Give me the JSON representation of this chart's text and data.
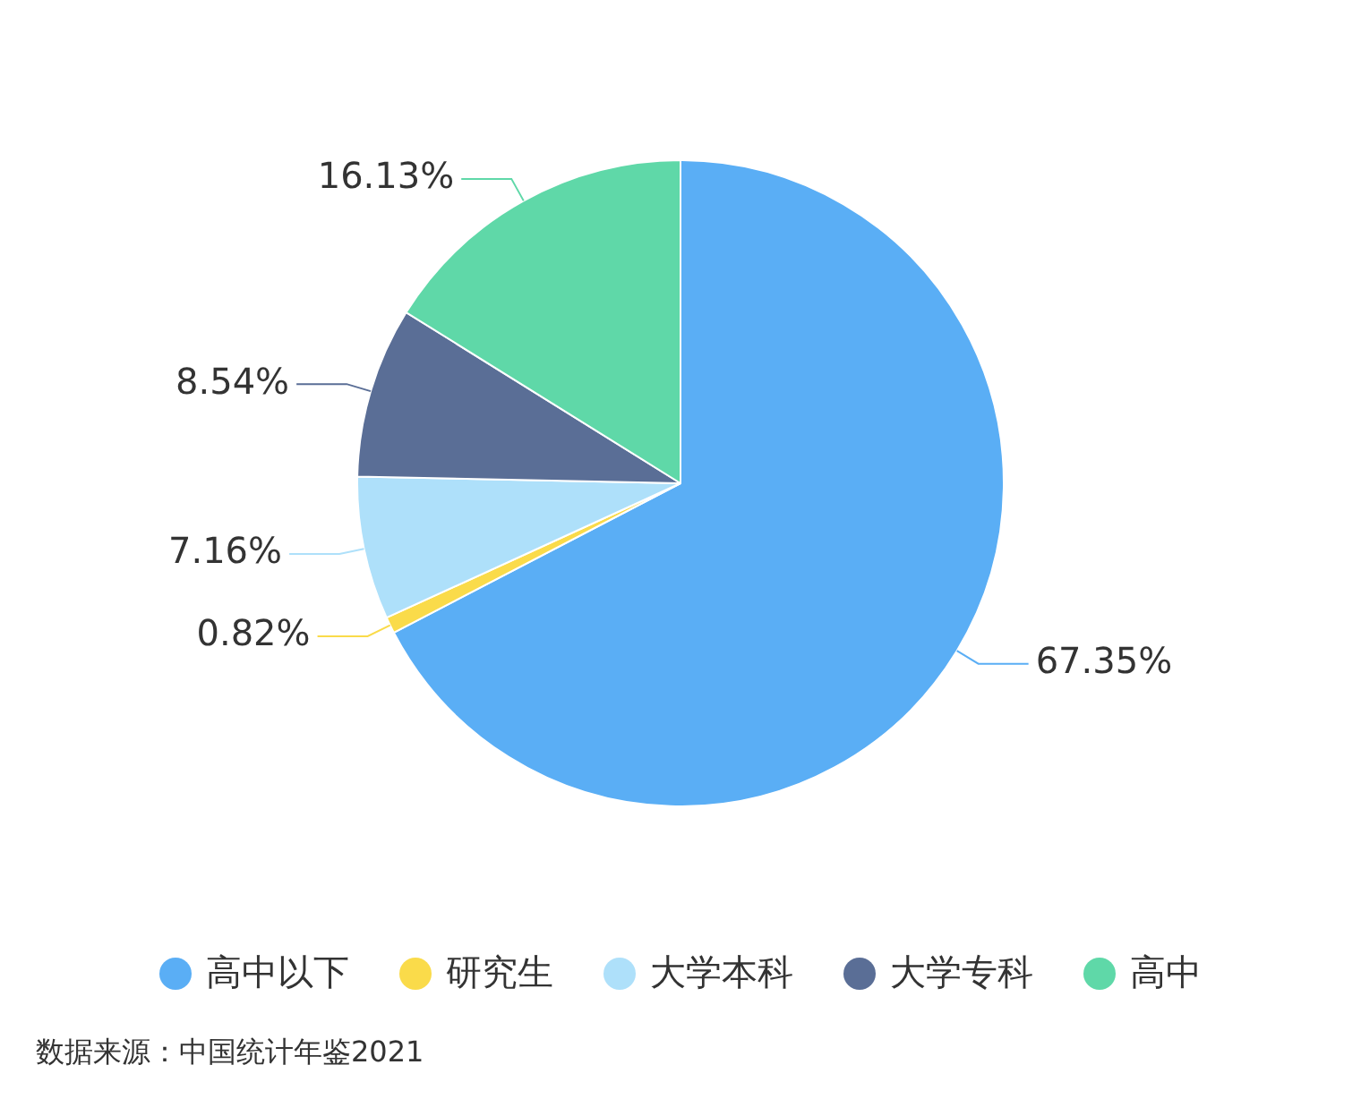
{
  "chart_data": {
    "type": "pie",
    "categories": [
      "高中以下",
      "研究生",
      "大学本科",
      "大学专科",
      "高中"
    ],
    "values": [
      67.35,
      0.82,
      7.16,
      8.54,
      16.13
    ],
    "value_labels": [
      "67.35%",
      "0.82%",
      "7.16%",
      "8.54%",
      "16.13%"
    ],
    "colors": [
      "#5aaef5",
      "#fadb4a",
      "#aee0fa",
      "#5a6e96",
      "#5fd8a8"
    ],
    "legend": "bottom",
    "annotations": [
      "数据来源：中国统计年鉴2021"
    ]
  }
}
